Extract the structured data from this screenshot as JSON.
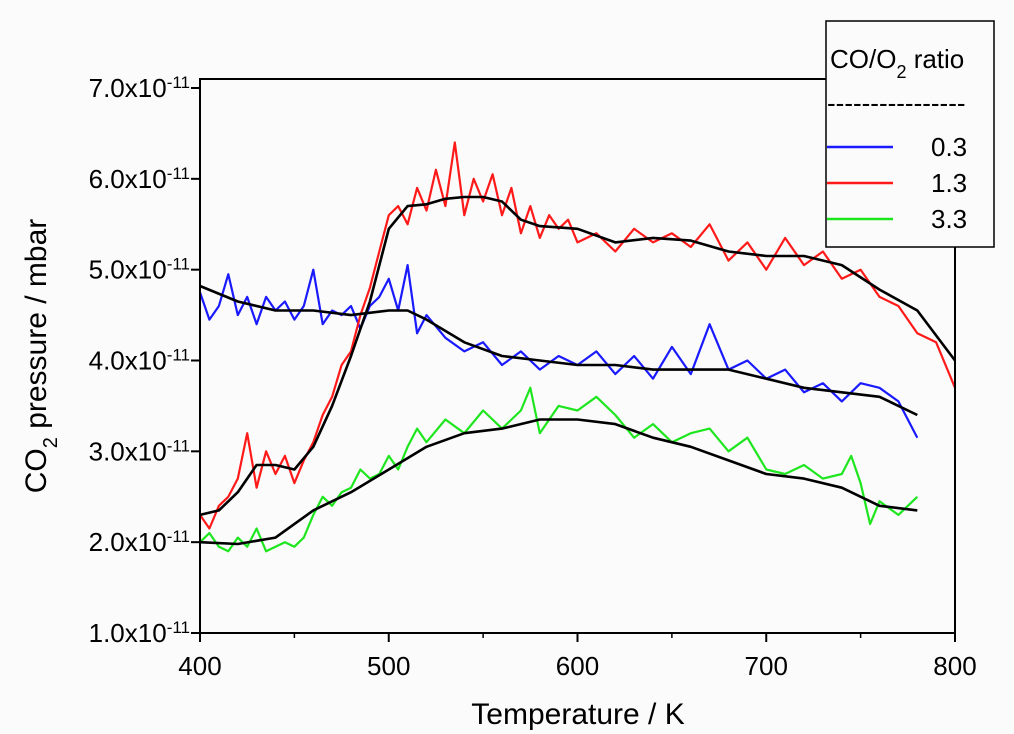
{
  "chart_data": {
    "type": "line",
    "xlabel": "Temperature / K",
    "ylabel": "CO2 pressure / mbar",
    "ylabel_parts": {
      "pre": "CO",
      "sub": "2",
      "post": " pressure / mbar"
    },
    "xlim": [
      400,
      800
    ],
    "ylim": [
      1e-11,
      7e-11
    ],
    "x_ticks": [
      "400",
      "500",
      "600",
      "700",
      "800"
    ],
    "y_ticks": [
      {
        "mant": "1.0x10",
        "exp": "-11",
        "value": 1e-11
      },
      {
        "mant": "2.0x10",
        "exp": "-11",
        "value": 2e-11
      },
      {
        "mant": "3.0x10",
        "exp": "-11",
        "value": 3e-11
      },
      {
        "mant": "4.0x10",
        "exp": "-11",
        "value": 4e-11
      },
      {
        "mant": "5.0x10",
        "exp": "-11",
        "value": 5e-11
      },
      {
        "mant": "6.0x10",
        "exp": "-11",
        "value": 6e-11
      },
      {
        "mant": "7.0x10",
        "exp": "-11",
        "value": 7e-11
      }
    ],
    "grid": false,
    "legend": {
      "placement": "top-right",
      "title_parts": {
        "pre": "CO/O",
        "sub": "2",
        "post": " ratio"
      },
      "separator": "----------------"
    },
    "series": [
      {
        "name": "0.3",
        "color": "#1a1aff",
        "kind": "raw",
        "x": [
          400,
          405,
          410,
          415,
          420,
          425,
          430,
          435,
          440,
          445,
          450,
          455,
          460,
          465,
          470,
          475,
          480,
          485,
          490,
          495,
          500,
          505,
          510,
          515,
          520,
          530,
          540,
          550,
          560,
          570,
          580,
          590,
          600,
          610,
          620,
          630,
          640,
          650,
          660,
          670,
          680,
          690,
          700,
          710,
          720,
          730,
          740,
          750,
          760,
          770,
          780
        ],
        "y": [
          4.75e-11,
          4.45e-11,
          4.6e-11,
          4.95e-11,
          4.5e-11,
          4.7e-11,
          4.4e-11,
          4.7e-11,
          4.55e-11,
          4.65e-11,
          4.45e-11,
          4.6e-11,
          5e-11,
          4.4e-11,
          4.55e-11,
          4.5e-11,
          4.6e-11,
          4.35e-11,
          4.6e-11,
          4.7e-11,
          4.9e-11,
          4.55e-11,
          5.05e-11,
          4.3e-11,
          4.5e-11,
          4.25e-11,
          4.1e-11,
          4.2e-11,
          3.95e-11,
          4.1e-11,
          3.9e-11,
          4.05e-11,
          3.95e-11,
          4.1e-11,
          3.85e-11,
          4.05e-11,
          3.8e-11,
          4.15e-11,
          3.85e-11,
          4.4e-11,
          3.9e-11,
          4e-11,
          3.8e-11,
          3.9e-11,
          3.65e-11,
          3.75e-11,
          3.55e-11,
          3.75e-11,
          3.7e-11,
          3.55e-11,
          3.15e-11
        ]
      },
      {
        "name": "1.3",
        "color": "#ff1a1a",
        "kind": "raw",
        "x": [
          400,
          405,
          410,
          415,
          420,
          425,
          430,
          435,
          440,
          445,
          450,
          455,
          460,
          465,
          470,
          475,
          480,
          485,
          490,
          495,
          500,
          505,
          510,
          515,
          520,
          525,
          530,
          535,
          540,
          545,
          550,
          555,
          560,
          565,
          570,
          575,
          580,
          585,
          590,
          595,
          600,
          610,
          620,
          630,
          640,
          650,
          660,
          670,
          680,
          690,
          700,
          710,
          720,
          730,
          740,
          750,
          760,
          770,
          780,
          790,
          800
        ],
        "y": [
          2.3e-11,
          2.15e-11,
          2.4e-11,
          2.5e-11,
          2.7e-11,
          3.2e-11,
          2.6e-11,
          3e-11,
          2.75e-11,
          2.95e-11,
          2.65e-11,
          2.9e-11,
          3.1e-11,
          3.4e-11,
          3.6e-11,
          3.95e-11,
          4.1e-11,
          4.5e-11,
          4.8e-11,
          5.2e-11,
          5.6e-11,
          5.7e-11,
          5.5e-11,
          5.9e-11,
          5.65e-11,
          6.1e-11,
          5.7e-11,
          6.4e-11,
          5.6e-11,
          6e-11,
          5.75e-11,
          6.05e-11,
          5.6e-11,
          5.9e-11,
          5.4e-11,
          5.7e-11,
          5.35e-11,
          5.6e-11,
          5.45e-11,
          5.55e-11,
          5.3e-11,
          5.4e-11,
          5.2e-11,
          5.45e-11,
          5.3e-11,
          5.4e-11,
          5.25e-11,
          5.5e-11,
          5.1e-11,
          5.3e-11,
          5e-11,
          5.35e-11,
          5.05e-11,
          5.2e-11,
          4.9e-11,
          5e-11,
          4.7e-11,
          4.6e-11,
          4.3e-11,
          4.2e-11,
          3.7e-11
        ]
      },
      {
        "name": "3.3",
        "color": "#1ee61e",
        "kind": "raw",
        "x": [
          400,
          405,
          410,
          415,
          420,
          425,
          430,
          435,
          440,
          445,
          450,
          455,
          460,
          465,
          470,
          475,
          480,
          485,
          490,
          495,
          500,
          505,
          510,
          515,
          520,
          530,
          540,
          550,
          560,
          570,
          575,
          580,
          590,
          600,
          610,
          620,
          630,
          640,
          650,
          660,
          670,
          680,
          690,
          700,
          710,
          720,
          730,
          740,
          745,
          750,
          755,
          760,
          770,
          780
        ],
        "y": [
          2e-11,
          2.1e-11,
          1.95e-11,
          1.9e-11,
          2.05e-11,
          1.95e-11,
          2.15e-11,
          1.9e-11,
          1.95e-11,
          2e-11,
          1.95e-11,
          2.05e-11,
          2.3e-11,
          2.5e-11,
          2.4e-11,
          2.55e-11,
          2.6e-11,
          2.8e-11,
          2.7e-11,
          2.75e-11,
          2.95e-11,
          2.8e-11,
          3.05e-11,
          3.25e-11,
          3.1e-11,
          3.35e-11,
          3.2e-11,
          3.45e-11,
          3.25e-11,
          3.45e-11,
          3.7e-11,
          3.2e-11,
          3.5e-11,
          3.45e-11,
          3.6e-11,
          3.4e-11,
          3.15e-11,
          3.3e-11,
          3.1e-11,
          3.2e-11,
          3.25e-11,
          3e-11,
          3.15e-11,
          2.8e-11,
          2.75e-11,
          2.85e-11,
          2.7e-11,
          2.75e-11,
          2.95e-11,
          2.65e-11,
          2.2e-11,
          2.45e-11,
          2.3e-11,
          2.5e-11
        ]
      },
      {
        "name": "",
        "color": "#000000",
        "kind": "fit",
        "x": [
          400,
          420,
          440,
          460,
          480,
          500,
          510,
          520,
          540,
          560,
          580,
          600,
          620,
          640,
          660,
          680,
          700,
          720,
          740,
          760,
          780
        ],
        "y": [
          4.82e-11,
          4.65e-11,
          4.55e-11,
          4.55e-11,
          4.5e-11,
          4.55e-11,
          4.55e-11,
          4.45e-11,
          4.2e-11,
          4.05e-11,
          4e-11,
          3.95e-11,
          3.95e-11,
          3.9e-11,
          3.9e-11,
          3.9e-11,
          3.8e-11,
          3.7e-11,
          3.65e-11,
          3.6e-11,
          3.4e-11
        ]
      },
      {
        "name": "",
        "color": "#000000",
        "kind": "fit",
        "x": [
          400,
          410,
          420,
          430,
          440,
          450,
          460,
          470,
          480,
          490,
          500,
          510,
          520,
          530,
          540,
          550,
          560,
          570,
          580,
          600,
          620,
          640,
          660,
          680,
          700,
          720,
          740,
          760,
          780,
          800
        ],
        "y": [
          2.3e-11,
          2.35e-11,
          2.55e-11,
          2.85e-11,
          2.85e-11,
          2.8e-11,
          3.05e-11,
          3.5e-11,
          4.05e-11,
          4.65e-11,
          5.45e-11,
          5.7e-11,
          5.72e-11,
          5.78e-11,
          5.8e-11,
          5.8e-11,
          5.75e-11,
          5.55e-11,
          5.48e-11,
          5.45e-11,
          5.3e-11,
          5.35e-11,
          5.32e-11,
          5.2e-11,
          5.15e-11,
          5.15e-11,
          5.05e-11,
          4.78e-11,
          4.55e-11,
          4e-11
        ]
      },
      {
        "name": "",
        "color": "#000000",
        "kind": "fit",
        "x": [
          400,
          420,
          440,
          460,
          480,
          500,
          520,
          540,
          560,
          580,
          600,
          620,
          640,
          660,
          680,
          700,
          720,
          740,
          760,
          780
        ],
        "y": [
          2e-11,
          1.98e-11,
          2.05e-11,
          2.35e-11,
          2.55e-11,
          2.8e-11,
          3.05e-11,
          3.2e-11,
          3.25e-11,
          3.35e-11,
          3.35e-11,
          3.3e-11,
          3.15e-11,
          3.05e-11,
          2.9e-11,
          2.75e-11,
          2.7e-11,
          2.6e-11,
          2.4e-11,
          2.35e-11
        ]
      }
    ]
  }
}
